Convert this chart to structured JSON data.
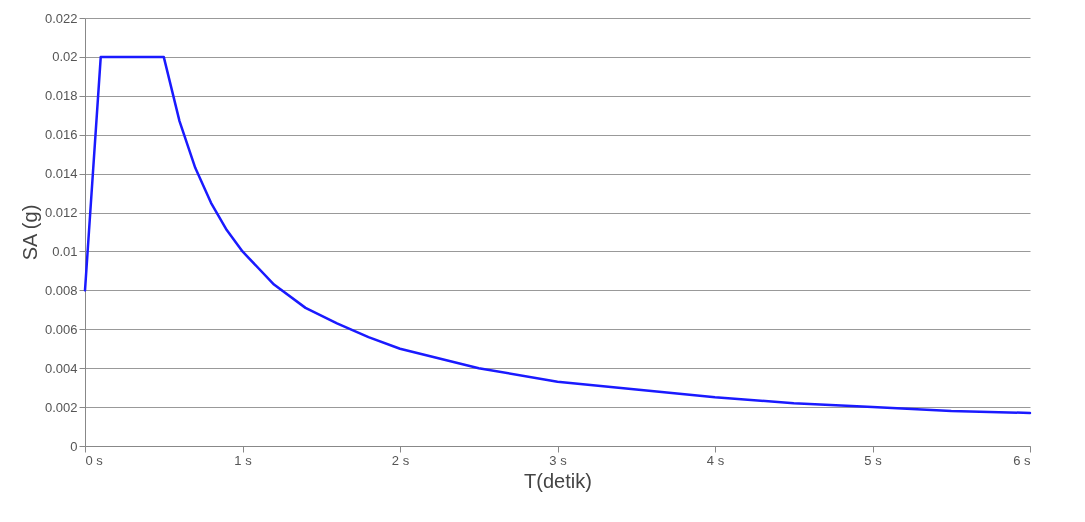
{
  "chart_data": {
    "type": "line",
    "xlabel": "T(detik)",
    "ylabel": "SA (g)",
    "x": [
      0,
      0.1,
      0.5,
      0.6,
      0.7,
      0.8,
      0.9,
      1,
      1.2,
      1.4,
      1.6,
      1.8,
      2,
      2.5,
      3,
      3.5,
      4,
      4.5,
      5,
      5.5,
      6
    ],
    "series": [
      {
        "color": "#1a1aff",
        "values": [
          0.008,
          0.02,
          0.02,
          0.0167,
          0.0143,
          0.0125,
          0.0111,
          0.01,
          0.0083,
          0.0071,
          0.0063,
          0.0056,
          0.005,
          0.004,
          0.0033,
          0.0029,
          0.0025,
          0.0022,
          0.002,
          0.0018,
          0.0017
        ]
      }
    ],
    "xlim": [
      0,
      6
    ],
    "xticks": [
      {
        "value": 0,
        "label": "0 s"
      },
      {
        "value": 1,
        "label": "1 s"
      },
      {
        "value": 2,
        "label": "2 s"
      },
      {
        "value": 3,
        "label": "3 s"
      },
      {
        "value": 4,
        "label": "4 s"
      },
      {
        "value": 5,
        "label": "5 s"
      },
      {
        "value": 6,
        "label": "6 s"
      }
    ],
    "ylim": [
      0,
      0.022
    ],
    "yticks": [
      0,
      0.002,
      0.004,
      0.006,
      0.008,
      0.01,
      0.012,
      0.014,
      0.016,
      0.018,
      0.02,
      0.022
    ],
    "grid": "y",
    "marker": "none",
    "line_style": "solid"
  }
}
